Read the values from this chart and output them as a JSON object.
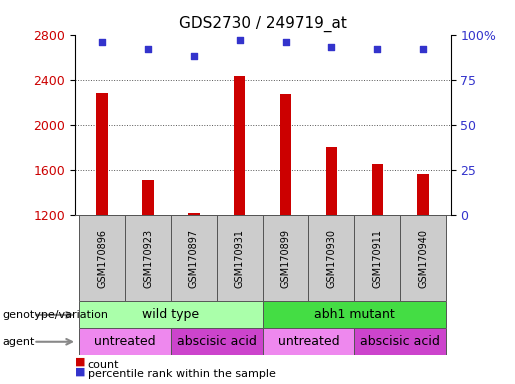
{
  "title": "GDS2730 / 249719_at",
  "samples": [
    "GSM170896",
    "GSM170923",
    "GSM170897",
    "GSM170931",
    "GSM170899",
    "GSM170930",
    "GSM170911",
    "GSM170940"
  ],
  "counts": [
    2280,
    1510,
    1215,
    2430,
    2270,
    1800,
    1650,
    1560
  ],
  "percentile_ranks": [
    96,
    92,
    88,
    97,
    96,
    93,
    92,
    92
  ],
  "ylim_left": [
    1200,
    2800
  ],
  "ylim_right": [
    0,
    100
  ],
  "yticks_left": [
    1200,
    1600,
    2000,
    2400,
    2800
  ],
  "yticks_right": [
    0,
    25,
    50,
    75,
    100
  ],
  "bar_color": "#cc0000",
  "dot_color": "#3333cc",
  "genotype_groups": [
    {
      "label": "wild type",
      "start": 0,
      "end": 4,
      "color": "#aaffaa"
    },
    {
      "label": "abh1 mutant",
      "start": 4,
      "end": 8,
      "color": "#44dd44"
    }
  ],
  "agent_groups": [
    {
      "label": "untreated",
      "start": 0,
      "end": 2,
      "color": "#ee88ee"
    },
    {
      "label": "abscisic acid",
      "start": 2,
      "end": 4,
      "color": "#cc44cc"
    },
    {
      "label": "untreated",
      "start": 4,
      "end": 6,
      "color": "#ee88ee"
    },
    {
      "label": "abscisic acid",
      "start": 6,
      "end": 8,
      "color": "#cc44cc"
    }
  ],
  "sample_box_color": "#cccccc",
  "legend_count_color": "#cc0000",
  "legend_dot_color": "#3333cc",
  "grid_color": "#555555",
  "tick_color_left": "#cc0000",
  "tick_color_right": "#3333cc"
}
